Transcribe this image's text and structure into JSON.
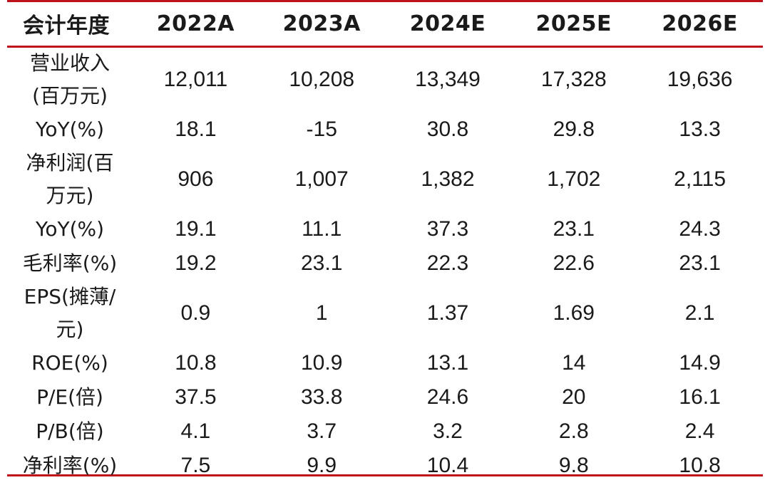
{
  "table": {
    "header": [
      "会计年度",
      "2022A",
      "2023A",
      "2024E",
      "2025E",
      "2026E"
    ],
    "rows": [
      {
        "label_lines": [
          "营业收入",
          "(百万元)"
        ],
        "values": [
          "12,011",
          "10,208",
          "13,349",
          "17,328",
          "19,636"
        ]
      },
      {
        "label_lines": [
          "YoY(%)"
        ],
        "values": [
          "18.1",
          "-15",
          "30.8",
          "29.8",
          "13.3"
        ]
      },
      {
        "label_lines": [
          "净利润(百",
          "万元)"
        ],
        "values": [
          "906",
          "1,007",
          "1,382",
          "1,702",
          "2,115"
        ]
      },
      {
        "label_lines": [
          "YoY(%)"
        ],
        "values": [
          "19.1",
          "11.1",
          "37.3",
          "23.1",
          "24.3"
        ]
      },
      {
        "label_lines": [
          "毛利率(%)"
        ],
        "values": [
          "19.2",
          "23.1",
          "22.3",
          "22.6",
          "23.1"
        ]
      },
      {
        "label_lines": [
          "EPS(摊薄/",
          "元)"
        ],
        "values": [
          "0.9",
          "1",
          "1.37",
          "1.69",
          "2.1"
        ]
      },
      {
        "label_lines": [
          "ROE(%)"
        ],
        "values": [
          "10.8",
          "10.9",
          "13.1",
          "14",
          "14.9"
        ]
      },
      {
        "label_lines": [
          "P/E(倍)"
        ],
        "values": [
          "37.5",
          "33.8",
          "24.6",
          "20",
          "16.1"
        ]
      },
      {
        "label_lines": [
          "P/B(倍)"
        ],
        "values": [
          "4.1",
          "3.7",
          "3.2",
          "2.8",
          "2.4"
        ]
      },
      {
        "label_lines": [
          "净利率(%)"
        ],
        "values": [
          "7.5",
          "9.9",
          "10.4",
          "9.8",
          "10.8"
        ]
      }
    ]
  },
  "colors": {
    "rule": "#c0121b",
    "text": "#1a1a1a"
  }
}
